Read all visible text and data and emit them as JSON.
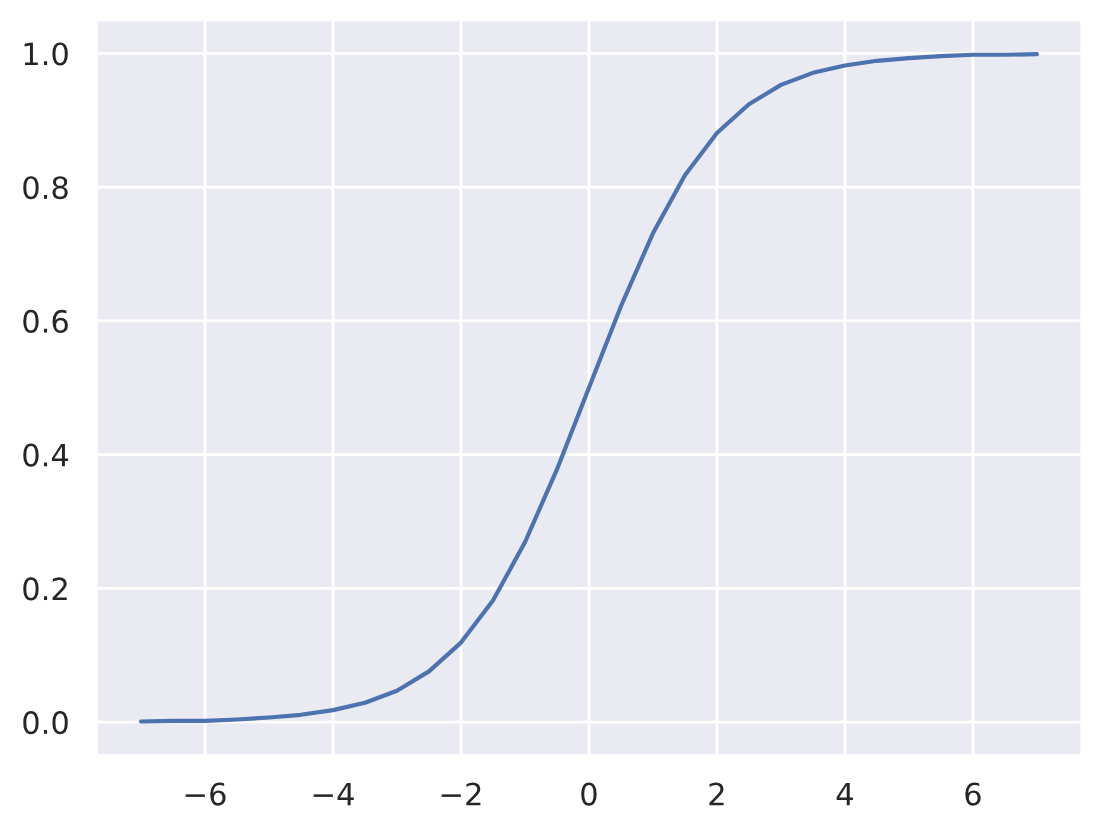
{
  "chart_data": {
    "type": "line",
    "x": [
      -7,
      -6.5,
      -6,
      -5.5,
      -5,
      -4.5,
      -4,
      -3.5,
      -3,
      -2.5,
      -2,
      -1.5,
      -1,
      -0.5,
      0,
      0.5,
      1,
      1.5,
      2,
      2.5,
      3,
      3.5,
      4,
      4.5,
      5,
      5.5,
      6,
      6.5,
      7
    ],
    "series": [
      {
        "color": "#4c72b0",
        "values": [
          0.001,
          0.002,
          0.002,
          0.004,
          0.007,
          0.011,
          0.018,
          0.029,
          0.047,
          0.076,
          0.119,
          0.182,
          0.269,
          0.378,
          0.5,
          0.622,
          0.731,
          0.818,
          0.881,
          0.924,
          0.953,
          0.971,
          0.982,
          0.989,
          0.993,
          0.996,
          0.998,
          0.998,
          0.999
        ]
      }
    ],
    "xlim": [
      -7.7,
      7.7
    ],
    "ylim": [
      -0.05,
      1.05
    ],
    "xticks": [
      {
        "value": -6,
        "label": "−6"
      },
      {
        "value": -4,
        "label": "−4"
      },
      {
        "value": -2,
        "label": "−2"
      },
      0,
      2,
      4,
      6
    ],
    "yticks": [
      {
        "value": 0,
        "label": "0.0"
      },
      {
        "value": 0.2,
        "label": "0.2"
      },
      {
        "value": 0.4,
        "label": "0.4"
      },
      {
        "value": 0.6,
        "label": "0.6"
      },
      {
        "value": 0.8,
        "label": "0.8"
      },
      {
        "value": 1,
        "label": "1.0"
      }
    ],
    "grid": true,
    "marker": "none",
    "line_style": "solid"
  }
}
